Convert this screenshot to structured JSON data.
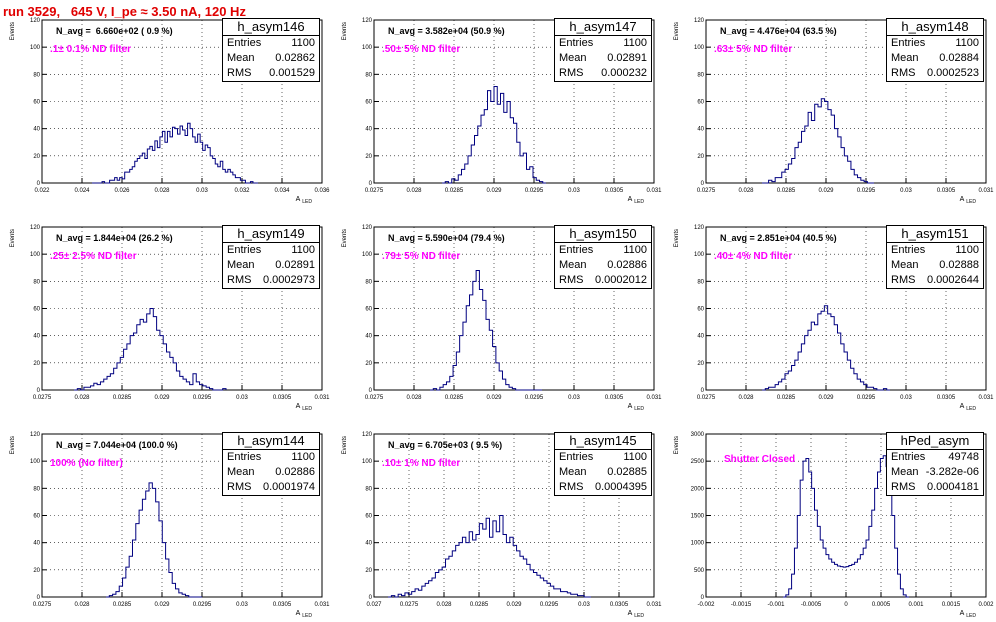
{
  "run_title": "run 3529,   645 V, I_pe ≈ 3.50 nA, 120 Hz",
  "colors": {
    "title": "#e00000",
    "annotation": "#ff00ff",
    "hist": "#000080",
    "grid": "#000000"
  },
  "chart_data": [
    {
      "type": "histogram",
      "name": "h_asym146",
      "entries": "1100",
      "mean": "0.02862",
      "rms": "0.001529",
      "n_avg": "N_avg =  6.660e+02 ( 0.9 %)",
      "filter": ".1± 0.1% ND filter",
      "xlim": [
        0.022,
        0.036
      ],
      "ylim": [
        0,
        120
      ],
      "ylabel": "Events",
      "xlabel": "",
      "xticks": [
        "0.022",
        "0.024",
        "0.026",
        "0.028",
        "0.03",
        "0.032",
        "0.034",
        "0.036"
      ],
      "yticks": [
        "0",
        "20",
        "40",
        "60",
        "80",
        "100",
        "120"
      ],
      "bin_lo": 0.0245,
      "bin_hi": 0.0328,
      "counts": [
        0,
        0,
        0,
        0,
        1,
        0,
        0,
        2,
        2,
        4,
        2,
        4,
        3,
        8,
        8,
        10,
        12,
        16,
        18,
        20,
        22,
        18,
        25,
        27,
        24,
        31,
        26,
        34,
        38,
        30,
        38,
        34,
        41,
        40,
        36,
        42,
        39,
        35,
        44,
        40,
        34,
        30,
        36,
        30,
        24,
        28,
        26,
        20,
        18,
        14,
        12,
        16,
        10,
        8,
        10,
        8,
        6,
        4,
        4,
        2,
        2,
        0,
        0,
        1,
        0,
        0
      ]
    },
    {
      "type": "histogram",
      "name": "h_asym147",
      "entries": "1100",
      "mean": "0.02891",
      "rms": "0.000232",
      "n_avg": "N_avg = 3.582e+04 (50.9 %)",
      "filter": ".50± 5% ND filter",
      "xlim": [
        0.0275,
        0.031
      ],
      "ylim": [
        0,
        120
      ],
      "ylabel": "Events",
      "xlabel": "",
      "xticks": [
        "0.0275",
        "0.028",
        "0.0285",
        "0.029",
        "0.0295",
        "0.03",
        "0.0305",
        "0.031"
      ],
      "yticks": [
        "0",
        "20",
        "40",
        "60",
        "80",
        "100",
        "120"
      ],
      "bin_lo": 0.02835,
      "bin_hi": 0.02965,
      "counts": [
        0,
        1,
        0,
        3,
        2,
        6,
        10,
        14,
        20,
        28,
        35,
        42,
        50,
        54,
        68,
        60,
        71,
        58,
        66,
        52,
        60,
        48,
        44,
        30,
        20,
        22,
        10,
        12,
        4,
        2,
        1,
        0
      ]
    },
    {
      "type": "histogram",
      "name": "h_asym148",
      "entries": "1100",
      "mean": "0.02884",
      "rms": "0.0002523",
      "n_avg": "N_avg = 4.476e+04 (63.5 %)",
      "filter": ".63± 5% ND filter",
      "xlim": [
        0.0275,
        0.031
      ],
      "ylim": [
        0,
        120
      ],
      "ylabel": "Events",
      "xlabel": "",
      "xticks": [
        "0.0275",
        "0.028",
        "0.0285",
        "0.029",
        "0.0295",
        "0.03",
        "0.0305",
        "0.031"
      ],
      "yticks": [
        "0",
        "20",
        "40",
        "60",
        "80",
        "100",
        "120"
      ],
      "bin_lo": 0.0282,
      "bin_hi": 0.0296,
      "counts": [
        0,
        0,
        2,
        1,
        4,
        4,
        8,
        10,
        14,
        18,
        26,
        30,
        38,
        42,
        52,
        46,
        58,
        56,
        62,
        60,
        54,
        50,
        40,
        34,
        26,
        20,
        16,
        10,
        6,
        4,
        2,
        1,
        0,
        0
      ]
    },
    {
      "type": "histogram",
      "name": "h_asym149",
      "entries": "1100",
      "mean": "0.02891",
      "rms": "0.0002973",
      "n_avg": "N_avg = 1.844e+04 (26.2 %)",
      "filter": ".25± 2.5% ND filter",
      "xlim": [
        0.0275,
        0.031
      ],
      "ylim": [
        0,
        120
      ],
      "ylabel": "Events",
      "xlabel": "",
      "xticks": [
        "0.0275",
        "0.028",
        "0.0285",
        "0.029",
        "0.0295",
        "0.03",
        "0.0305",
        "0.031"
      ],
      "yticks": [
        "0",
        "20",
        "40",
        "60",
        "80",
        "100",
        "120"
      ],
      "bin_lo": 0.0279,
      "bin_hi": 0.0298,
      "counts": [
        0,
        1,
        0,
        2,
        2,
        3,
        5,
        4,
        6,
        8,
        10,
        12,
        16,
        20,
        24,
        30,
        34,
        40,
        42,
        48,
        52,
        50,
        56,
        60,
        54,
        44,
        40,
        34,
        28,
        24,
        20,
        14,
        10,
        8,
        6,
        4,
        12,
        6,
        4,
        3,
        2,
        1,
        0,
        0,
        0,
        1
      ]
    },
    {
      "type": "histogram",
      "name": "h_asym150",
      "entries": "1100",
      "mean": "0.02886",
      "rms": "0.0002012",
      "n_avg": "N_avg = 5.590e+04 (79.4 %)",
      "filter": ".79± 5% ND filter",
      "xlim": [
        0.0275,
        0.031
      ],
      "ylim": [
        0,
        120
      ],
      "ylabel": "Events",
      "xlabel": "",
      "xticks": [
        "0.0275",
        "0.028",
        "0.0285",
        "0.029",
        "0.0295",
        "0.03",
        "0.0305",
        "0.031"
      ],
      "yticks": [
        "0",
        "20",
        "40",
        "60",
        "80",
        "100",
        "120"
      ],
      "bin_lo": 0.0282,
      "bin_hi": 0.0296,
      "counts": [
        0,
        1,
        0,
        2,
        4,
        6,
        10,
        18,
        28,
        40,
        50,
        62,
        70,
        80,
        88,
        74,
        66,
        52,
        44,
        32,
        20,
        14,
        8,
        4,
        2,
        1,
        0,
        0,
        0,
        0,
        0,
        0,
        0,
        0
      ]
    },
    {
      "type": "histogram",
      "name": "h_asym151",
      "entries": "1100",
      "mean": "0.02888",
      "rms": "0.0002644",
      "n_avg": "N_avg = 2.851e+04 (40.5 %)",
      "filter": ".40± 4% ND filter",
      "xlim": [
        0.0275,
        0.031
      ],
      "ylim": [
        0,
        120
      ],
      "ylabel": "Events",
      "xlabel": "",
      "xticks": [
        "0.0275",
        "0.028",
        "0.0285",
        "0.029",
        "0.0295",
        "0.03",
        "0.0305",
        "0.031"
      ],
      "yticks": [
        "0",
        "20",
        "40",
        "60",
        "80",
        "100",
        "120"
      ],
      "bin_lo": 0.0282,
      "bin_hi": 0.0298,
      "counts": [
        0,
        1,
        2,
        2,
        4,
        6,
        8,
        12,
        14,
        18,
        22,
        28,
        34,
        40,
        44,
        50,
        48,
        56,
        58,
        62,
        56,
        54,
        48,
        42,
        34,
        28,
        22,
        16,
        12,
        8,
        6,
        4,
        2,
        2,
        1,
        0,
        0,
        1,
        0
      ]
    },
    {
      "type": "histogram",
      "name": "h_asym144",
      "entries": "1100",
      "mean": "0.02886",
      "rms": "0.0001974",
      "n_avg": "N_avg = 7.044e+04 (100.0 %)",
      "filter": "100% (No filter)",
      "xlim": [
        0.0275,
        0.031
      ],
      "ylim": [
        0,
        120
      ],
      "ylabel": "Events",
      "xlabel": "",
      "xticks": [
        "0.0275",
        "0.028",
        "0.0285",
        "0.029",
        "0.0295",
        "0.03",
        "0.0305",
        "0.031"
      ],
      "yticks": [
        "0",
        "20",
        "40",
        "60",
        "80",
        "100",
        "120"
      ],
      "bin_lo": 0.0283,
      "bin_hi": 0.0295,
      "counts": [
        0,
        1,
        2,
        4,
        8,
        14,
        22,
        30,
        42,
        54,
        64,
        72,
        78,
        84,
        80,
        70,
        56,
        40,
        28,
        18,
        10,
        6,
        3,
        2,
        1,
        0,
        0,
        0,
        0
      ]
    },
    {
      "type": "histogram",
      "name": "h_asym145",
      "entries": "1100",
      "mean": "0.02885",
      "rms": "0.0004395",
      "n_avg": "N_avg = 6.705e+03 ( 9.5 %)",
      "filter": ".10± 1% ND filter",
      "xlim": [
        0.027,
        0.031
      ],
      "ylim": [
        0,
        120
      ],
      "ylabel": "Events",
      "xlabel": "",
      "xticks": [
        "0.027",
        "0.0275",
        "0.028",
        "0.0285",
        "0.029",
        "0.0295",
        "0.03",
        "0.0305",
        "0.031"
      ],
      "yticks": [
        "0",
        "20",
        "40",
        "60",
        "80",
        "100",
        "120"
      ],
      "bin_lo": 0.0272,
      "bin_hi": 0.0301,
      "counts": [
        0,
        1,
        0,
        2,
        1,
        3,
        2,
        4,
        6,
        5,
        8,
        10,
        12,
        14,
        18,
        20,
        22,
        28,
        30,
        34,
        38,
        40,
        44,
        40,
        48,
        42,
        46,
        54,
        50,
        58,
        44,
        56,
        48,
        60,
        46,
        40,
        44,
        38,
        34,
        30,
        28,
        24,
        20,
        18,
        16,
        14,
        12,
        10,
        8,
        6,
        6,
        4,
        4,
        3,
        2,
        2,
        1,
        1,
        0,
        0
      ]
    },
    {
      "type": "histogram",
      "name": "hPed_asym",
      "entries": "49748",
      "mean": "-3.282e-06",
      "rms": "0.0004181",
      "n_avg": "",
      "filter": "Shutter Closed",
      "xlim": [
        -0.002,
        0.002
      ],
      "ylim": [
        0,
        3000
      ],
      "ylabel": "Events",
      "xlabel": "",
      "xticks": [
        "-0.002",
        "-0.0015",
        "-0.001",
        "-0.0005",
        "0",
        "0.0005",
        "0.001",
        "0.0015",
        "0.002"
      ],
      "yticks": [
        "0",
        "500",
        "1000",
        "1500",
        "2000",
        "2500",
        "3000"
      ],
      "bin_lo": -0.0009,
      "bin_hi": 0.0009,
      "counts": [
        0,
        40,
        150,
        420,
        900,
        1500,
        2150,
        2500,
        2550,
        2300,
        2000,
        1600,
        1300,
        1050,
        900,
        780,
        700,
        640,
        600,
        570,
        560,
        550,
        560,
        580,
        600,
        640,
        700,
        780,
        900,
        1050,
        1300,
        1600,
        2000,
        2300,
        2550,
        2600,
        2400,
        2000,
        1500,
        900,
        420,
        150,
        40,
        0
      ]
    }
  ],
  "axis_label": "A",
  "axis_label_sub": "LED"
}
